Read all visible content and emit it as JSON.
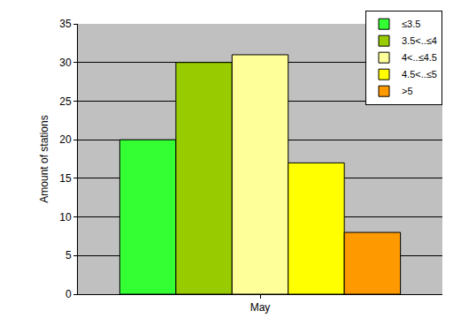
{
  "chart_data": {
    "type": "bar",
    "categories": [
      "May"
    ],
    "series": [
      {
        "name": "≤3.5",
        "color": "#33ff33",
        "values": [
          20
        ]
      },
      {
        "name": "3.5<..≤4",
        "color": "#99cc00",
        "values": [
          30
        ]
      },
      {
        "name": "4<..≤4.5",
        "color": "#ffff99",
        "values": [
          31
        ]
      },
      {
        "name": "4.5<..≤5",
        "color": "#ffff00",
        "values": [
          17
        ]
      },
      {
        "name": ">5",
        "color": "#ff9900",
        "values": [
          8
        ]
      }
    ],
    "y_label": "Amount of stations",
    "ylim": [
      0,
      35
    ],
    "yticks": [
      0,
      5,
      10,
      15,
      20,
      25,
      30,
      35
    ],
    "grid": true,
    "legend": "upper right"
  }
}
